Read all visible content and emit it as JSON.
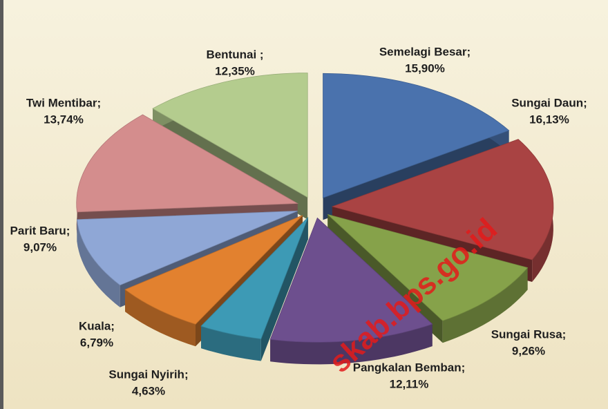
{
  "chart_data": {
    "type": "pie",
    "categories": [
      "Semelagi Besar;",
      "Sungai Daun;",
      "Sungai Rusa;",
      "Pangkalan Bemban;",
      "Sungai Nyirih;",
      "Kuala;",
      "Parit Baru;",
      "Twi Mentibar;",
      "Bentunai ;"
    ],
    "values": [
      15.9,
      16.13,
      9.26,
      12.11,
      4.63,
      6.79,
      9.07,
      13.74,
      12.35
    ],
    "value_labels": [
      "15,90%",
      "16,13%",
      "9,26%",
      "12,11%",
      "4,63%",
      "6,79%",
      "9,07%",
      "13,74%",
      "12,35%"
    ],
    "colors": [
      "#4a72ad",
      "#a94343",
      "#86a24a",
      "#6d4f8e",
      "#3d9ab5",
      "#e2812f",
      "#8fa7d6",
      "#d48d8d",
      "#b4cc8e"
    ],
    "watermark": "skab.bps.go.id"
  }
}
